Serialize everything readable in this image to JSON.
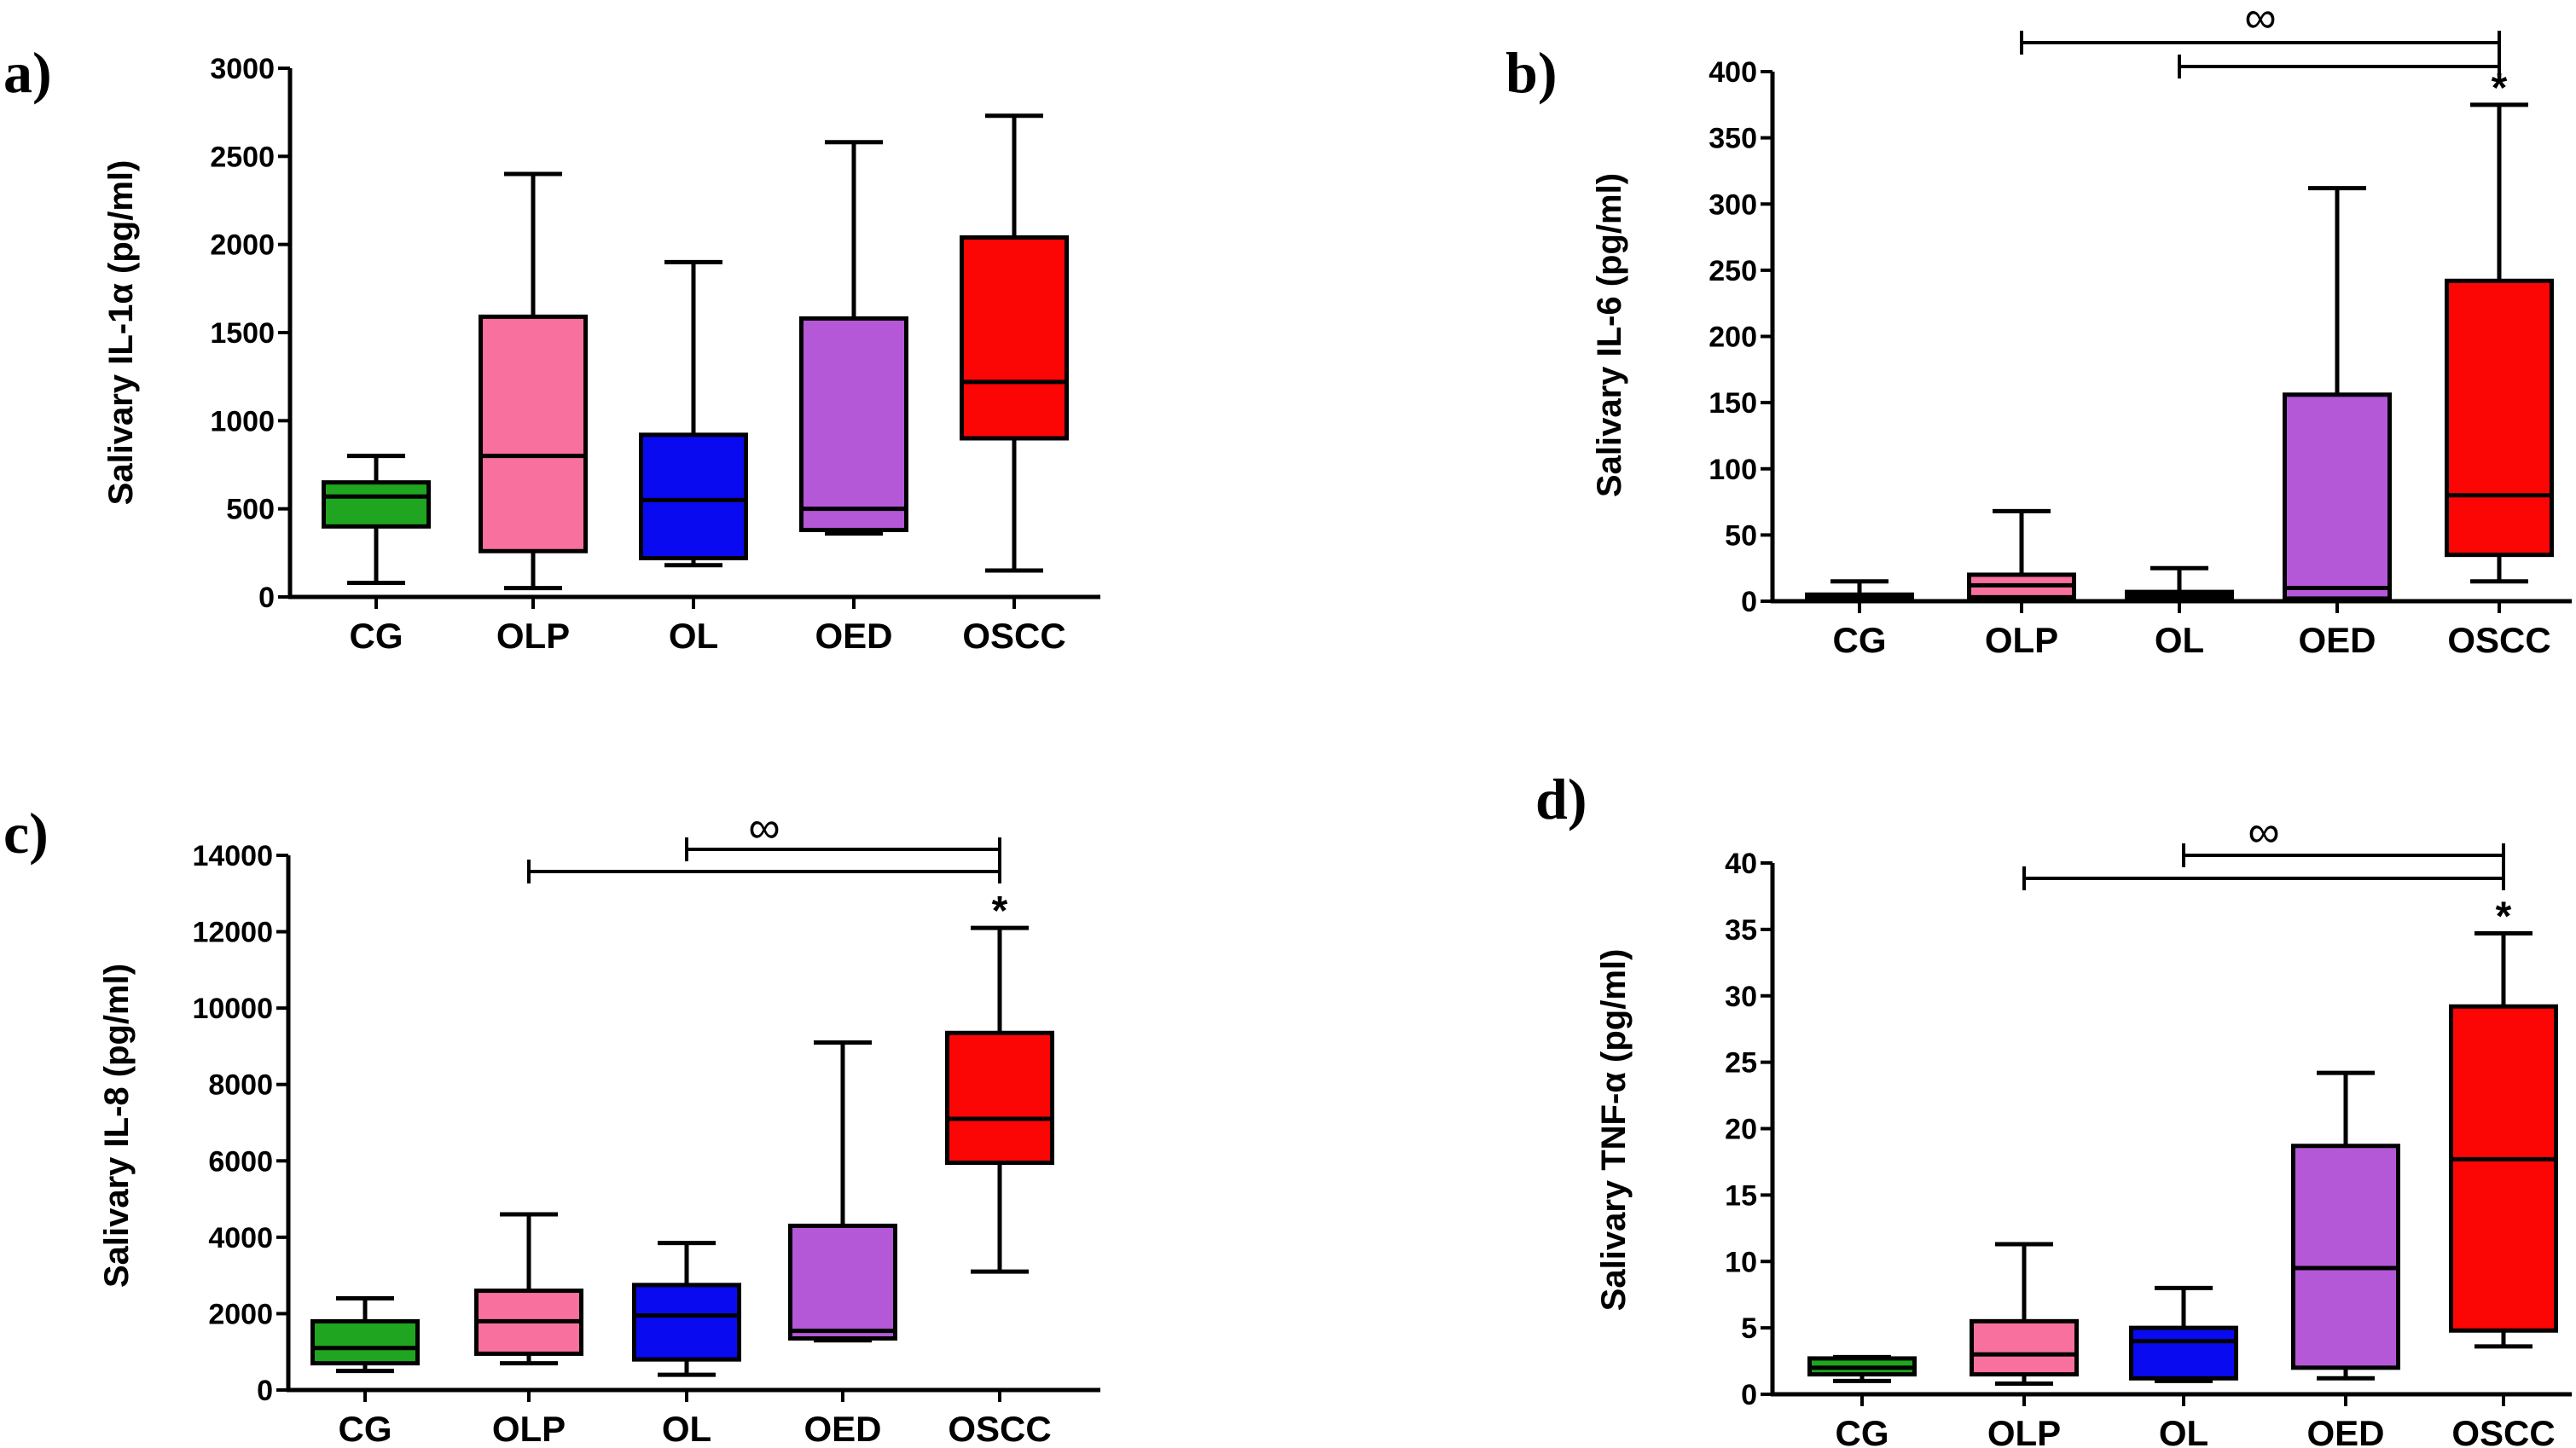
{
  "chart_data": [
    {
      "type": "box",
      "panel": "a)",
      "ylabel": "Salivary IL-1α (pg/ml)",
      "ylim": [
        0,
        3000
      ],
      "yticks": [
        "0",
        "500",
        "1000",
        "1500",
        "2000",
        "2500",
        "3000"
      ],
      "ytick_values": [
        0,
        500,
        1000,
        1500,
        2000,
        2500,
        3000
      ],
      "categories": [
        "CG",
        "OLP",
        "OL",
        "OED",
        "OSCC"
      ],
      "colors": [
        "#1fa51f",
        "#f7709e",
        "#0a0af0",
        "#b458d8",
        "#fb0505"
      ],
      "boxes": [
        {
          "min": 80,
          "q1": 400,
          "median": 570,
          "q3": 650,
          "max": 800
        },
        {
          "min": 50,
          "q1": 260,
          "median": 800,
          "q3": 1590,
          "max": 2400
        },
        {
          "min": 180,
          "q1": 220,
          "median": 550,
          "q3": 920,
          "max": 1900
        },
        {
          "min": 360,
          "q1": 380,
          "median": 500,
          "q3": 1580,
          "max": 2580
        },
        {
          "min": 150,
          "q1": 900,
          "median": 1220,
          "q3": 2040,
          "max": 2730
        }
      ],
      "brackets": [],
      "significance": [],
      "grid": false,
      "legend": "none"
    },
    {
      "type": "box",
      "panel": "b)",
      "ylabel": "Salivary IL-6 (pg/ml)",
      "ylim": [
        0,
        400
      ],
      "yticks": [
        "0",
        "50",
        "100",
        "150",
        "200",
        "250",
        "300",
        "350",
        "400"
      ],
      "ytick_values": [
        0,
        50,
        100,
        150,
        200,
        250,
        300,
        350,
        400
      ],
      "categories": [
        "CG",
        "OLP",
        "OL",
        "OED",
        "OSCC"
      ],
      "colors": [
        "#1fa51f",
        "#f7709e",
        "#0a0af0",
        "#b458d8",
        "#fb0505"
      ],
      "boxes": [
        {
          "min": 0,
          "q1": 1,
          "median": 3,
          "q3": 5,
          "max": 15
        },
        {
          "min": 0,
          "q1": 3,
          "median": 12,
          "q3": 20,
          "max": 68
        },
        {
          "min": 0,
          "q1": 1,
          "median": 4,
          "q3": 7,
          "max": 25
        },
        {
          "min": 0,
          "q1": 2,
          "median": 10,
          "q3": 156,
          "max": 312
        },
        {
          "min": 15,
          "q1": 35,
          "median": 80,
          "q3": 242,
          "max": 375
        }
      ],
      "brackets": [
        {
          "from": "OLP",
          "to": "OSCC",
          "level": 1
        },
        {
          "from": "OL",
          "to": "OSCC",
          "level": 0
        }
      ],
      "significance": [
        "∞",
        "*"
      ],
      "grid": false,
      "legend": "none"
    },
    {
      "type": "box",
      "panel": "c)",
      "ylabel": "Salivary IL-8 (pg/ml)",
      "ylim": [
        0,
        14000
      ],
      "yticks": [
        "0",
        "2000",
        "4000",
        "6000",
        "8000",
        "10000",
        "12000",
        "14000"
      ],
      "ytick_values": [
        0,
        2000,
        4000,
        6000,
        8000,
        10000,
        12000,
        14000
      ],
      "categories": [
        "CG",
        "OLP",
        "OL",
        "OED",
        "OSCC"
      ],
      "colors": [
        "#1fa51f",
        "#f7709e",
        "#0a0af0",
        "#b458d8",
        "#fb0505"
      ],
      "boxes": [
        {
          "min": 500,
          "q1": 700,
          "median": 1100,
          "q3": 1800,
          "max": 2400
        },
        {
          "min": 700,
          "q1": 950,
          "median": 1800,
          "q3": 2600,
          "max": 4600
        },
        {
          "min": 400,
          "q1": 800,
          "median": 1950,
          "q3": 2750,
          "max": 3850
        },
        {
          "min": 1300,
          "q1": 1350,
          "median": 1550,
          "q3": 4300,
          "max": 9100
        },
        {
          "min": 3100,
          "q1": 5950,
          "median": 7100,
          "q3": 9350,
          "max": 12100
        }
      ],
      "brackets": [
        {
          "from": "OLP",
          "to": "OSCC",
          "level": 1
        },
        {
          "from": "OL",
          "to": "OSCC",
          "level": 0
        }
      ],
      "significance": [
        "∞",
        "*"
      ],
      "grid": false,
      "legend": "none"
    },
    {
      "type": "box",
      "panel": "d)",
      "ylabel": "Salivary TNF-α (pg/ml)",
      "ylim": [
        0,
        40
      ],
      "yticks": [
        "0",
        "5",
        "10",
        "15",
        "20",
        "25",
        "30",
        "35",
        "40"
      ],
      "ytick_values": [
        0,
        5,
        10,
        15,
        20,
        25,
        30,
        35,
        40
      ],
      "categories": [
        "CG",
        "OLP",
        "OL",
        "OED",
        "OSCC"
      ],
      "colors": [
        "#1fa51f",
        "#f7709e",
        "#0a0af0",
        "#b458d8",
        "#fb0505"
      ],
      "boxes": [
        {
          "min": 1,
          "q1": 1.5,
          "median": 2,
          "q3": 2.7,
          "max": 2.8
        },
        {
          "min": 0.8,
          "q1": 1.5,
          "median": 3,
          "q3": 5.5,
          "max": 11.3
        },
        {
          "min": 1,
          "q1": 1.2,
          "median": 4,
          "q3": 5,
          "max": 8
        },
        {
          "min": 1.2,
          "q1": 2,
          "median": 9.5,
          "q3": 18.7,
          "max": 24.2
        },
        {
          "min": 3.6,
          "q1": 4.8,
          "median": 17.7,
          "q3": 29.2,
          "max": 34.7
        }
      ],
      "brackets": [
        {
          "from": "OLP",
          "to": "OSCC",
          "level": 1
        },
        {
          "from": "OL",
          "to": "OSCC",
          "level": 0
        }
      ],
      "significance": [
        "∞",
        "*"
      ],
      "grid": false,
      "legend": "none"
    }
  ]
}
